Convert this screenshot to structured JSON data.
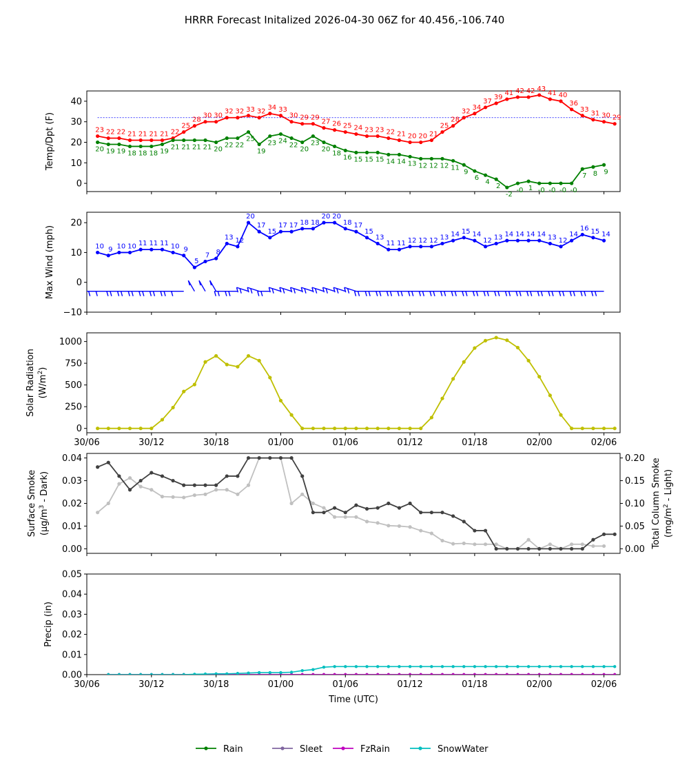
{
  "title": "HRRR Forecast Initalized 2026-04-30 06Z for 40.456,-106.740",
  "colors": {
    "temp": "#ff0000",
    "dewpoint": "#008000",
    "wind": "#0000ff",
    "solar": "#bfbf00",
    "smoke_dark": "#404040",
    "smoke_light": "#c0c0c0",
    "rain": "#008000",
    "sleet": "#8066a0",
    "fzrain": "#bf00bf",
    "snow": "#00bfbf",
    "freezing_line": "#0000ff"
  },
  "x_tick_labels": [
    "30/06",
    "30/12",
    "30/18",
    "01/00",
    "01/06",
    "01/12",
    "01/18",
    "02/00",
    "02/06"
  ],
  "chart_data": [
    {
      "type": "line",
      "name": "temp-dewpoint",
      "ylabel": "Temp/Dpt (F)",
      "ylim": [
        -4,
        45
      ],
      "yticks": [
        0,
        10,
        20,
        30,
        40
      ],
      "freezing_line": 32,
      "x_start": 1,
      "x_step": 1,
      "series": [
        {
          "name": "Temperature",
          "values": [
            23,
            22,
            22,
            21,
            21,
            21,
            21,
            22,
            25,
            28,
            30,
            30,
            32,
            32,
            33,
            32,
            34,
            33,
            30,
            29,
            29,
            27,
            26,
            25,
            24,
            23,
            23,
            22,
            21,
            20,
            20,
            21,
            25,
            28,
            32,
            34,
            37,
            39,
            41,
            42,
            42,
            43,
            41,
            40,
            36,
            33,
            31,
            30,
            29
          ],
          "labels": [
            "23",
            "22",
            "22",
            "21",
            "21",
            "21",
            "21",
            "22",
            "25",
            "28",
            "30",
            "30",
            "32",
            "32",
            "33",
            "32",
            "34",
            "33",
            "30",
            "29",
            "29",
            "27",
            "26",
            "25",
            "24",
            "23",
            "23",
            "22",
            "21",
            "20",
            "20",
            "21",
            "25",
            "28",
            "32",
            "34",
            "37",
            "39",
            "41",
            "42",
            "42",
            "43",
            "41",
            "40",
            "36",
            "33",
            "31",
            "30",
            "29"
          ]
        },
        {
          "name": "Dewpoint",
          "values": [
            20,
            19,
            19,
            18,
            18,
            18,
            19,
            21,
            21,
            21,
            21,
            20,
            22,
            22,
            25,
            19,
            23,
            24,
            22,
            20,
            23,
            20,
            18,
            16,
            15,
            15,
            15,
            14,
            14,
            13,
            12,
            12,
            12,
            11,
            9,
            6,
            4,
            2,
            -2,
            0,
            1,
            0,
            0,
            0,
            0,
            7,
            8,
            9
          ],
          "labels": [
            "20",
            "19",
            "19",
            "18",
            "18",
            "18",
            "19",
            "21",
            "21",
            "21",
            "21",
            "20",
            "22",
            "22",
            "25",
            "19",
            "23",
            "24",
            "22",
            "20",
            "23",
            "20",
            "18",
            "16",
            "15",
            "15",
            "15",
            "14",
            "14",
            "13",
            "12",
            "12",
            "12",
            "11",
            "9",
            "6",
            "4",
            "2",
            "-2",
            "-0",
            "1",
            "-0",
            "-0",
            "-0",
            "-0",
            "7",
            "8",
            "9"
          ]
        }
      ]
    },
    {
      "type": "line",
      "name": "max-wind",
      "ylabel": "Max Wind (mph)",
      "ylim": [
        -10,
        23.5
      ],
      "yticks": [
        -10,
        0,
        10,
        20
      ],
      "x_start": 1,
      "x_step": 1,
      "series": [
        {
          "name": "Max Wind",
          "values": [
            10,
            9,
            10,
            10,
            11,
            11,
            11,
            10,
            9,
            5,
            7,
            8,
            13,
            12,
            20,
            17,
            15,
            17,
            17,
            18,
            18,
            20,
            20,
            18,
            17,
            15,
            13,
            11,
            11,
            12,
            12,
            12,
            13,
            14,
            15,
            14,
            12,
            13,
            14,
            14,
            14,
            14,
            13,
            12,
            14,
            16,
            15,
            14
          ]
        }
      ]
    },
    {
      "type": "line",
      "name": "solar-radiation",
      "ylabel": "Solar Radiation (W/m2)",
      "ylim": [
        -50,
        1100
      ],
      "yticks": [
        0,
        250,
        500,
        750,
        1000
      ],
      "x_start": 1,
      "x_step": 1,
      "series": [
        {
          "name": "Solar Radiation",
          "values": [
            0,
            0,
            0,
            0,
            0,
            0,
            100,
            240,
            425,
            505,
            765,
            835,
            735,
            710,
            835,
            780,
            585,
            320,
            155,
            0,
            0,
            0,
            0,
            0,
            0,
            0,
            0,
            0,
            0,
            0,
            0,
            125,
            345,
            570,
            765,
            925,
            1010,
            1045,
            1015,
            930,
            780,
            595,
            380,
            155,
            0,
            0,
            0,
            0,
            0
          ]
        }
      ]
    },
    {
      "type": "line",
      "name": "smoke",
      "ylabel": "Surface Smoke (μg/m3 - Dark)",
      "y2label": "Total Column Smoke (mg/m2 - Light)",
      "ylim": [
        -0.002,
        0.042
      ],
      "yticks": [
        0.0,
        0.01,
        0.02,
        0.03,
        0.04
      ],
      "y2lim": [
        -0.01,
        0.21
      ],
      "y2ticks": [
        0.0,
        0.05,
        0.1,
        0.15,
        0.2
      ],
      "x_start": 1,
      "x_step": 1,
      "series": [
        {
          "name": "Surface Smoke",
          "axis": "left",
          "values": [
            0.036,
            0.038,
            0.032,
            0.026,
            0.03,
            0.0335,
            0.032,
            0.03,
            0.028,
            0.028,
            0.028,
            0.028,
            0.032,
            0.032,
            0.04,
            0.04,
            0.04,
            0.04,
            0.04,
            0.032,
            0.016,
            0.016,
            0.018,
            0.016,
            0.0192,
            0.0176,
            0.018,
            0.02,
            0.018,
            0.02,
            0.016,
            0.016,
            0.016,
            0.0144,
            0.012,
            0.008,
            0.008,
            0.0,
            0.0,
            0.0,
            0.0,
            0.0,
            0.0,
            0.0,
            0.0,
            0.0,
            0.004,
            0.0064,
            0.0064
          ]
        },
        {
          "name": "Total Column Smoke",
          "axis": "right",
          "values": [
            0.08,
            0.1,
            0.143,
            0.156,
            0.137,
            0.13,
            0.115,
            0.114,
            0.113,
            0.118,
            0.12,
            0.13,
            0.13,
            0.12,
            0.14,
            0.2,
            0.2,
            0.2,
            0.1,
            0.12,
            0.1,
            0.09,
            0.07,
            0.07,
            0.07,
            0.06,
            0.057,
            0.051,
            0.05,
            0.048,
            0.04,
            0.034,
            0.018,
            0.011,
            0.012,
            0.01,
            0.01,
            0.01,
            0.0,
            0.0,
            0.02,
            0.0,
            0.01,
            0.0,
            0.01,
            0.01,
            0.006,
            0.006
          ]
        }
      ]
    },
    {
      "type": "line",
      "name": "precip",
      "ylabel": "Precip (in)",
      "xlabel": "Time (UTC)",
      "ylim": [
        0,
        0.05
      ],
      "yticks": [
        0.0,
        0.01,
        0.02,
        0.03,
        0.04,
        0.05
      ],
      "x_start": 2,
      "x_step": 1,
      "series": [
        {
          "name": "Rain",
          "values": [
            0,
            0,
            0,
            0,
            0,
            0,
            0,
            0,
            0,
            0,
            0,
            0,
            0,
            0,
            0,
            0,
            0,
            0,
            0,
            0,
            0,
            0,
            0,
            0,
            0,
            0,
            0,
            0,
            0,
            0,
            0,
            0,
            0,
            0,
            0,
            0,
            0,
            0,
            0,
            0,
            0,
            0,
            0,
            0,
            0,
            0,
            0,
            0
          ]
        },
        {
          "name": "Sleet",
          "values": [
            0,
            0,
            0,
            0,
            0,
            0,
            0,
            0,
            0,
            0,
            0,
            0,
            0,
            0,
            0,
            0,
            0,
            0,
            0,
            0,
            0,
            0,
            0,
            0,
            0,
            0,
            0,
            0,
            0,
            0,
            0,
            0,
            0,
            0,
            0,
            0,
            0,
            0,
            0,
            0,
            0,
            0,
            0,
            0,
            0,
            0,
            0,
            0
          ]
        },
        {
          "name": "FzRain",
          "values": [
            0,
            0,
            0,
            0,
            0,
            0,
            0,
            0,
            0,
            0,
            0,
            0,
            0,
            0,
            0,
            0,
            0,
            0,
            0,
            0,
            0,
            0,
            0,
            0,
            0,
            0,
            0,
            0,
            0,
            0,
            0,
            0,
            0,
            0,
            0,
            0,
            0,
            0,
            0,
            0,
            0,
            0,
            0,
            0,
            0,
            0,
            0,
            0
          ]
        },
        {
          "name": "SnowWater",
          "values": [
            0,
            0,
            0,
            0,
            0,
            0,
            0,
            0,
            0.0002,
            0.0003,
            0.0004,
            0.0004,
            0.0006,
            0.0008,
            0.001,
            0.001,
            0.001,
            0.0012,
            0.002,
            0.0025,
            0.0037,
            0.004,
            0.004,
            0.004,
            0.004,
            0.004,
            0.004,
            0.004,
            0.004,
            0.004,
            0.004,
            0.004,
            0.004,
            0.004,
            0.004,
            0.004,
            0.004,
            0.004,
            0.004,
            0.004,
            0.004,
            0.004,
            0.004,
            0.004,
            0.004,
            0.004,
            0.004,
            0.004
          ]
        }
      ]
    }
  ],
  "legend": [
    "Rain",
    "Sleet",
    "FzRain",
    "SnowWater"
  ]
}
